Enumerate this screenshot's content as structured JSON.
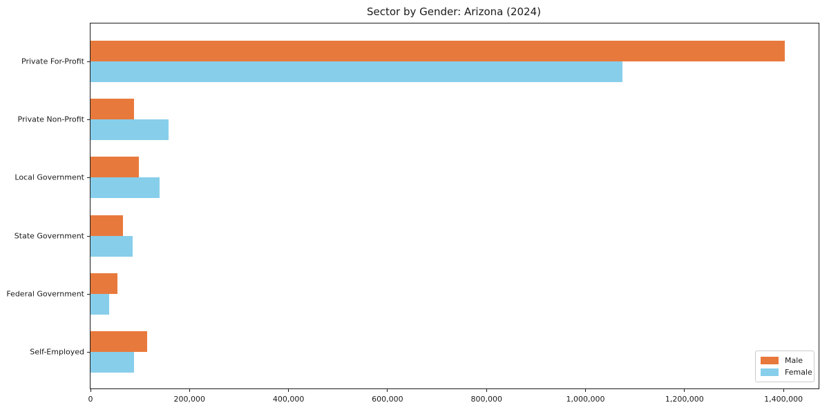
{
  "chart_data": {
    "type": "bar",
    "orientation": "horizontal",
    "title": "Sector by Gender: Arizona (2024)",
    "categories": [
      "Private For-Profit",
      "Private Non-Profit",
      "Local Government",
      "State Government",
      "Federal Government",
      "Self-Employed"
    ],
    "series": [
      {
        "name": "Male",
        "color": "#e8793c",
        "values": [
          1403000,
          88000,
          98000,
          66000,
          55000,
          115000
        ]
      },
      {
        "name": "Female",
        "color": "#87ceeb",
        "values": [
          1075000,
          158000,
          140000,
          85000,
          38000,
          88000
        ]
      }
    ],
    "xlabel": "",
    "ylabel": "",
    "xlim": [
      0,
      1471000
    ],
    "x_ticks": [
      0,
      200000,
      400000,
      600000,
      800000,
      1000000,
      1200000,
      1400000
    ],
    "x_tick_labels": [
      "0",
      "200,000",
      "400,000",
      "600,000",
      "800,000",
      "1,000,000",
      "1,200,000",
      "1,400,000"
    ],
    "grid": false,
    "legend_position": "lower right",
    "legend": {
      "entries": [
        {
          "label": "Male",
          "color": "#e8793c"
        },
        {
          "label": "Female",
          "color": "#87ceeb"
        }
      ]
    }
  }
}
